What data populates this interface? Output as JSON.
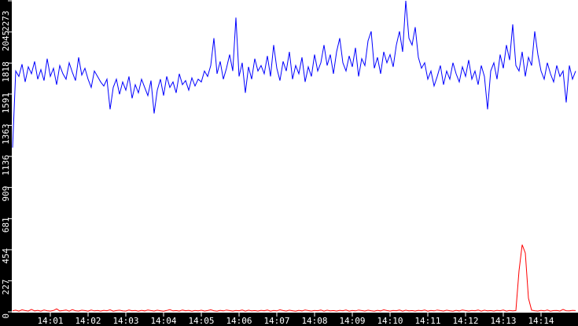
{
  "chart_data": {
    "type": "line",
    "title": "",
    "xlabel": "",
    "ylabel": "",
    "x_start": "14:00:00",
    "x_step_seconds": 5,
    "xlim": [
      "14:00:00",
      "14:15:00"
    ],
    "ylim": [
      0,
      2273
    ],
    "grid": false,
    "legend": "none",
    "background": "#ffffff",
    "axis_color": "#000000",
    "y_ticks": [
      "0",
      "227",
      "454",
      "681",
      "909",
      "1136",
      "1363",
      "1591",
      "1818",
      "2045",
      "2273"
    ],
    "x_ticks": [
      "14:01",
      "14:02",
      "14:03",
      "14:04",
      "14:05",
      "14:06",
      "14:07",
      "14:08",
      "14:09",
      "14:10",
      "14:11",
      "14:12",
      "14:13",
      "14:14"
    ],
    "series": [
      {
        "color": "#0000ff",
        "values": [
          1200,
          1760,
          1720,
          1810,
          1680,
          1790,
          1740,
          1830,
          1700,
          1770,
          1690,
          1850,
          1720,
          1780,
          1660,
          1800,
          1740,
          1700,
          1820,
          1750,
          1690,
          1860,
          1730,
          1780,
          1700,
          1640,
          1760,
          1720,
          1680,
          1650,
          1700,
          1480,
          1640,
          1700,
          1590,
          1680,
          1620,
          1720,
          1560,
          1660,
          1600,
          1700,
          1640,
          1580,
          1690,
          1450,
          1620,
          1700,
          1580,
          1720,
          1640,
          1680,
          1600,
          1740,
          1660,
          1690,
          1620,
          1710,
          1650,
          1700,
          1680,
          1760,
          1720,
          1800,
          2000,
          1740,
          1830,
          1700,
          1780,
          1880,
          1760,
          2150,
          1720,
          1820,
          1600,
          1790,
          1700,
          1850,
          1760,
          1800,
          1740,
          1870,
          1720,
          1950,
          1780,
          1690,
          1830,
          1760,
          1900,
          1700,
          1800,
          1740,
          1860,
          1680,
          1790,
          1720,
          1880,
          1760,
          1820,
          1950,
          1800,
          1880,
          1740,
          1900,
          2000,
          1820,
          1760,
          1870,
          1790,
          1930,
          1720,
          1850,
          1800,
          1980,
          2050,
          1780,
          1860,
          1740,
          1900,
          1820,
          1880,
          1790,
          1950,
          2050,
          1900,
          2273,
          2000,
          1950,
          2080,
          1860,
          1780,
          1820,
          1700,
          1760,
          1650,
          1720,
          1800,
          1660,
          1760,
          1700,
          1820,
          1740,
          1680,
          1790,
          1720,
          1840,
          1700,
          1760,
          1660,
          1800,
          1720,
          1480,
          1760,
          1820,
          1700,
          1880,
          1780,
          1950,
          1840,
          2100,
          1800,
          1760,
          1900,
          1720,
          1860,
          1800,
          2050,
          1880,
          1760,
          1700,
          1820,
          1740,
          1680,
          1800,
          1720,
          1760,
          1530,
          1800,
          1700,
          1760
        ]
      },
      {
        "color": "#ff0000",
        "values": [
          8,
          12,
          5,
          15,
          9,
          6,
          18,
          7,
          11,
          5,
          14,
          8,
          6,
          10,
          22,
          7,
          9,
          13,
          5,
          16,
          8,
          6,
          12,
          9,
          5,
          14,
          7,
          10,
          6,
          11,
          8,
          15,
          5,
          9,
          12,
          7,
          6,
          13,
          8,
          10,
          5,
          11,
          7,
          14,
          9,
          6,
          12,
          8,
          5,
          10,
          16,
          7,
          9,
          6,
          13,
          8,
          11,
          5,
          10,
          7,
          12,
          6,
          9,
          15,
          8,
          5,
          11,
          7,
          13,
          9,
          6,
          10,
          8,
          14,
          5,
          12,
          7,
          9,
          6,
          11,
          8,
          13,
          5,
          10,
          7,
          15,
          9,
          6,
          12,
          8,
          5,
          11,
          7,
          14,
          9,
          6,
          10,
          8,
          13,
          5,
          12,
          7,
          9,
          6,
          11,
          8,
          14,
          5,
          10,
          7,
          13,
          9,
          6,
          12,
          8,
          5,
          11,
          7,
          15,
          9,
          6,
          10,
          8,
          13,
          5,
          12,
          7,
          9,
          6,
          11,
          8,
          14,
          5,
          10,
          7,
          13,
          9,
          6,
          12,
          8,
          5,
          11,
          7,
          14,
          9,
          6,
          10,
          8,
          13,
          5,
          12,
          7,
          9,
          6,
          11,
          8,
          14,
          5,
          10,
          7,
          9,
          300,
          490,
          430,
          100,
          12,
          8,
          6,
          11,
          7,
          13,
          5,
          9,
          10,
          6,
          18,
          8,
          7,
          11,
          9
        ]
      }
    ]
  }
}
